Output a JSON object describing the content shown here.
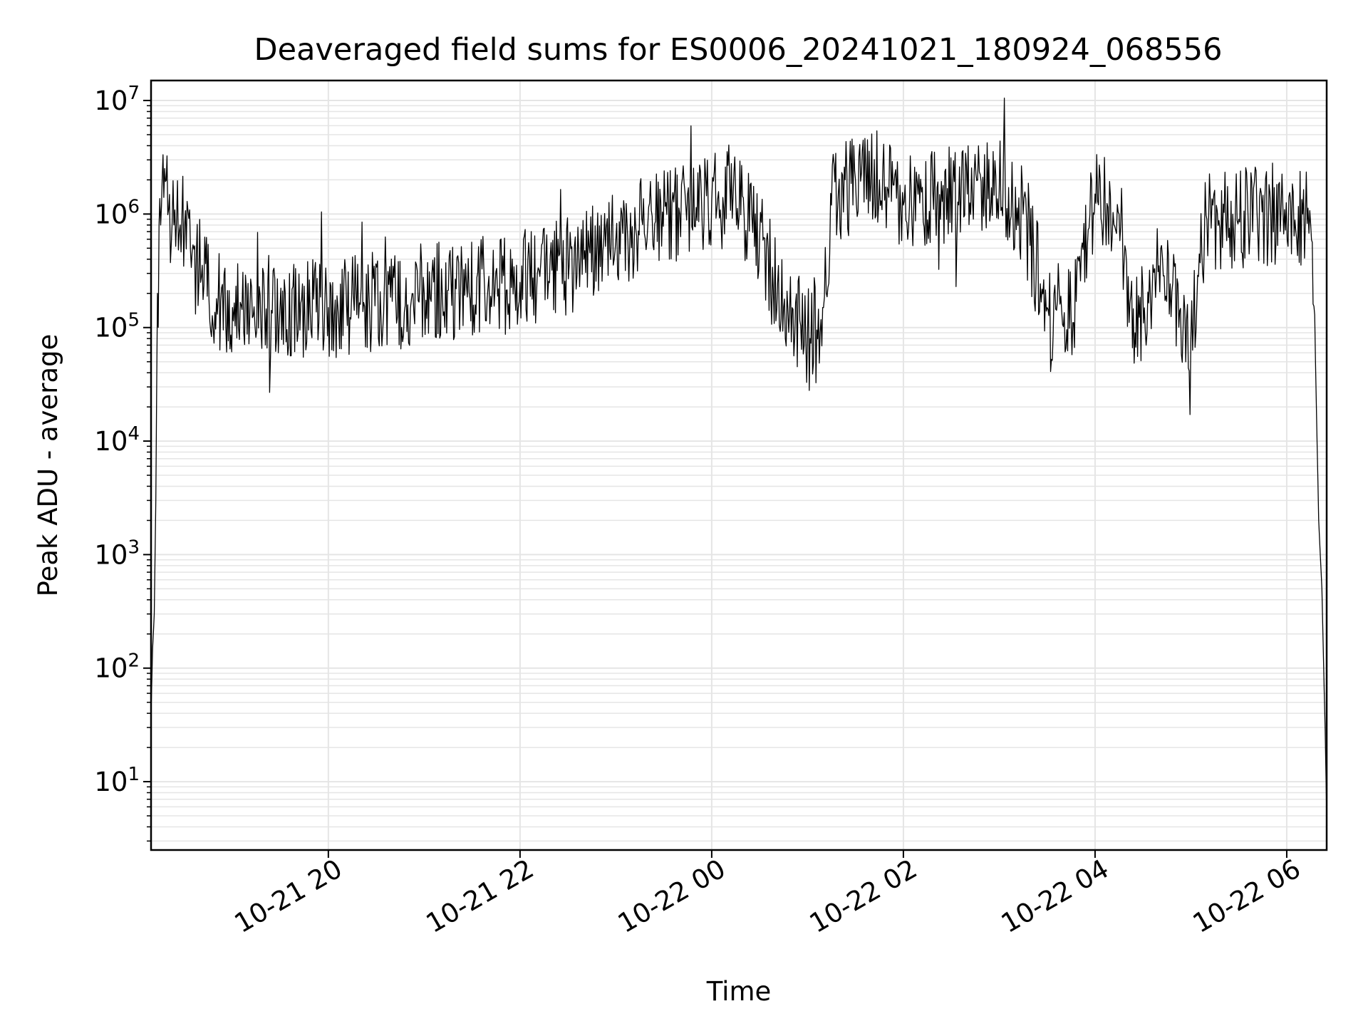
{
  "chart_data": {
    "type": "line",
    "title": "Deaveraged field sums for ES0006_20241021_180924_068556",
    "xlabel": "Time",
    "ylabel": "Peak ADU - average",
    "yscale": "log",
    "ylim": [
      2.5,
      15000000
    ],
    "xlim": [
      "2024-10-21 18:09",
      "2024-10-22 06:25"
    ],
    "x_ticks": [
      "10-21 20",
      "10-21 22",
      "10-22 00",
      "10-22 02",
      "10-22 04",
      "10-22 06"
    ],
    "x_tick_times": [
      "2024-10-21 20:00",
      "2024-10-21 22:00",
      "2024-10-22 00:00",
      "2024-10-22 02:00",
      "2024-10-22 04:00",
      "2024-10-22 06:00"
    ],
    "y_ticks": [
      {
        "base": "10",
        "exp": "1",
        "value": 10
      },
      {
        "base": "10",
        "exp": "2",
        "value": 100
      },
      {
        "base": "10",
        "exp": "3",
        "value": 1000
      },
      {
        "base": "10",
        "exp": "4",
        "value": 10000
      },
      {
        "base": "10",
        "exp": "5",
        "value": 100000
      },
      {
        "base": "10",
        "exp": "6",
        "value": 1000000
      },
      {
        "base": "10",
        "exp": "7",
        "value": 10000000
      }
    ],
    "grid": true,
    "line_color": "#000000",
    "grid_color": "#e5e5e5",
    "series": [
      {
        "x": [
          "2024-10-21 18:09",
          "2024-10-21 18:10",
          "2024-10-21 18:11",
          "2024-10-21 18:12",
          "2024-10-21 18:13",
          "2024-10-21 18:15",
          "2024-10-21 18:17",
          "2024-10-21 18:20",
          "2024-10-21 18:25",
          "2024-10-21 18:30",
          "2024-10-21 18:40",
          "2024-10-21 18:50",
          "2024-10-21 19:00",
          "2024-10-21 19:20",
          "2024-10-21 19:40",
          "2024-10-21 20:00",
          "2024-10-21 20:20",
          "2024-10-21 20:40",
          "2024-10-21 21:00",
          "2024-10-21 21:20",
          "2024-10-21 21:40",
          "2024-10-21 22:00",
          "2024-10-21 22:20",
          "2024-10-21 22:40",
          "2024-10-21 23:00",
          "2024-10-21 23:20",
          "2024-10-21 23:40",
          "2024-10-22 00:00",
          "2024-10-22 00:15",
          "2024-10-22 00:30",
          "2024-10-22 00:45",
          "2024-10-22 01:00",
          "2024-10-22 01:10",
          "2024-10-22 01:15",
          "2024-10-22 01:30",
          "2024-10-22 01:45",
          "2024-10-22 02:00",
          "2024-10-22 02:20",
          "2024-10-22 02:40",
          "2024-10-22 03:00",
          "2024-10-22 03:15",
          "2024-10-22 03:30",
          "2024-10-22 03:45",
          "2024-10-22 04:00",
          "2024-10-22 04:15",
          "2024-10-22 04:25",
          "2024-10-22 04:40",
          "2024-10-22 05:00",
          "2024-10-22 05:10",
          "2024-10-22 05:30",
          "2024-10-22 05:50",
          "2024-10-22 06:10",
          "2024-10-22 06:15",
          "2024-10-22 06:18",
          "2024-10-22 06:20",
          "2024-10-22 06:22",
          "2024-10-22 06:24",
          "2024-10-22 06:25"
        ],
        "y": [
          40,
          150,
          300,
          3000,
          200000,
          800000,
          1400000,
          1100000,
          900000,
          800000,
          250000,
          180000,
          150000,
          160000,
          140000,
          150000,
          160000,
          170000,
          200000,
          220000,
          230000,
          250000,
          320000,
          400000,
          600000,
          800000,
          1000000,
          1300000,
          1500000,
          600000,
          150000,
          90000,
          150000,
          1200000,
          2000000,
          2000000,
          1200000,
          1300000,
          1500000,
          1600000,
          1000000,
          150000,
          120000,
          1500000,
          1000000,
          90000,
          350000,
          80000,
          900000,
          900000,
          1000000,
          1000000,
          800000,
          50000,
          2000,
          500,
          30,
          5
        ]
      }
    ]
  }
}
